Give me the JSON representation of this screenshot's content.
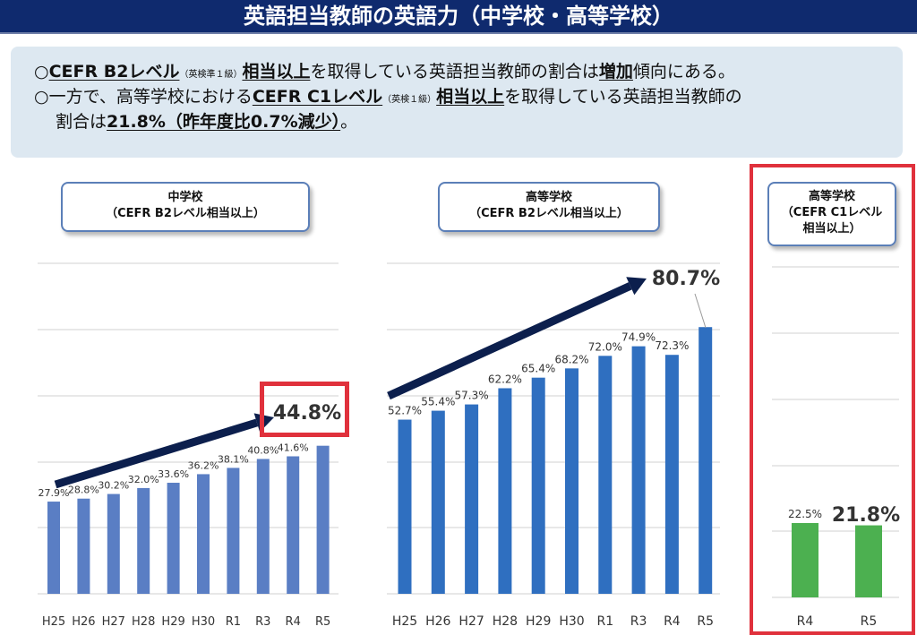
{
  "title": "英語担当教師の英語力（中学校・高等学校）",
  "summary": {
    "line1": {
      "bullet": "○",
      "cefr": "CEFR B2レベル",
      "note": "（英検準１級）",
      "equiv": "相当以上",
      "mid": "を取得している英語担当教師の割合は",
      "increase": "増加",
      "end": "傾向にある。"
    },
    "line2": {
      "bullet": "○",
      "start": "一方で、高等学校における",
      "cefr": "CEFR C1レベル",
      "note": "（英検１級）",
      "equiv": "相当以上",
      "end": "を取得している英語担当教師の"
    },
    "line3": {
      "start": "割合は",
      "value": "21.8%（昨年度比0.7%減少）",
      "end": "。"
    }
  },
  "panels": {
    "middle": {
      "title1": "中学校",
      "title2": "（CEFR B2レベル相当以上）"
    },
    "high_b2": {
      "title1": "高等学校",
      "title2": "（CEFR B2レベル相当以上）"
    },
    "high_c1": {
      "title1": "高等学校",
      "title2": "（CEFR C1レベル",
      "title3": "相当以上）"
    }
  },
  "colors": {
    "title_bg": "#0f2a6e",
    "bar_middle": "#5a7ec4",
    "bar_high": "#2f6fc0",
    "bar_c1": "#4cb050",
    "arrow": "#0c1f4d",
    "highlight": "#e0313c",
    "summary_bg": "#dde8f1"
  },
  "chart_data": [
    {
      "type": "bar",
      "title": "中学校（CEFR B2レベル相当以上）",
      "categories": [
        "H25",
        "H26",
        "H27",
        "H28",
        "H29",
        "H30",
        "R1",
        "R3",
        "R4",
        "R5"
      ],
      "values": [
        27.9,
        28.8,
        30.2,
        32.0,
        33.6,
        36.2,
        38.1,
        40.8,
        41.6,
        44.8
      ],
      "labels": [
        "27.9%",
        "28.8%",
        "30.2%",
        "32.0%",
        "33.6%",
        "36.2%",
        "38.1%",
        "40.8%",
        "41.6%",
        "44.8%"
      ],
      "highlight_label": "44.8%",
      "ylim": [
        0,
        100
      ],
      "grid": true,
      "trend_arrow": true
    },
    {
      "type": "bar",
      "title": "高等学校（CEFR B2レベル相当以上）",
      "categories": [
        "H25",
        "H26",
        "H27",
        "H28",
        "H29",
        "H30",
        "R1",
        "R3",
        "R4",
        "R5"
      ],
      "values": [
        52.7,
        55.4,
        57.3,
        62.2,
        65.4,
        68.2,
        72.0,
        74.9,
        72.3,
        80.7
      ],
      "labels": [
        "52.7%",
        "55.4%",
        "57.3%",
        "62.2%",
        "65.4%",
        "68.2%",
        "72.0%",
        "74.9%",
        "72.3%",
        "80.7%"
      ],
      "highlight_label": "80.7%",
      "ylim": [
        0,
        100
      ],
      "grid": true,
      "trend_arrow": true
    },
    {
      "type": "bar",
      "title": "高等学校（CEFR C1レベル相当以上）",
      "categories": [
        "R4",
        "R5"
      ],
      "values": [
        22.5,
        21.8
      ],
      "labels": [
        "22.5%",
        "21.8%"
      ],
      "highlight_label": "21.8%",
      "ylim": [
        0,
        100
      ],
      "grid": true
    }
  ]
}
